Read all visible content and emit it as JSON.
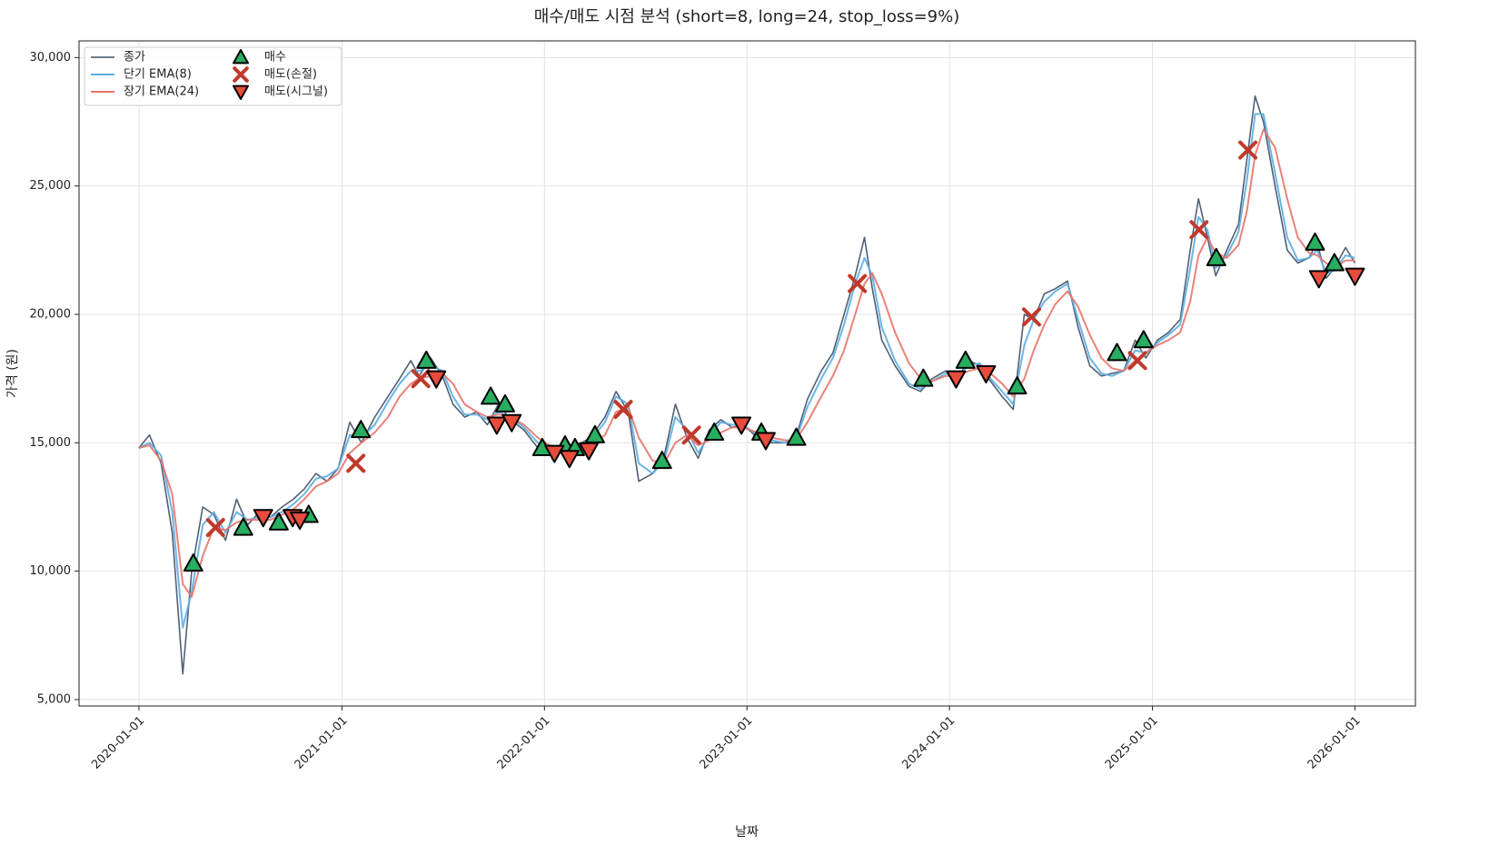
{
  "chart_data": {
    "type": "line",
    "title": "매수/매도 시점 분석 (short=8, long=24, stop_loss=9%)",
    "x_label": "날짜",
    "y_label": "가격 (원)",
    "xlim": [
      "2019-09-15",
      "2026-04-20"
    ],
    "xticks": [
      "2020-01-01",
      "2021-01-01",
      "2022-01-01",
      "2023-01-01",
      "2024-01-01",
      "2025-01-01",
      "2026-01-01"
    ],
    "ylim": [
      4750,
      30650
    ],
    "yticks": [
      {
        "value": 5000,
        "label": "5,000"
      },
      {
        "value": 10000,
        "label": "10,000"
      },
      {
        "value": 15000,
        "label": "15,000"
      },
      {
        "value": 20000,
        "label": "20,000"
      },
      {
        "value": 25000,
        "label": "25,000"
      },
      {
        "value": 30000,
        "label": "30,000"
      }
    ],
    "grid": true,
    "legend": "upper left",
    "x": [
      "2020-01-01",
      "2020-01-20",
      "2020-02-10",
      "2020-03-01",
      "2020-03-20",
      "2020-04-05",
      "2020-04-25",
      "2020-05-15",
      "2020-06-05",
      "2020-06-25",
      "2020-07-15",
      "2020-08-05",
      "2020-08-25",
      "2020-09-15",
      "2020-10-05",
      "2020-10-25",
      "2020-11-15",
      "2020-12-05",
      "2020-12-25",
      "2021-01-15",
      "2021-02-05",
      "2021-03-01",
      "2021-03-25",
      "2021-04-15",
      "2021-05-05",
      "2021-05-20",
      "2021-06-10",
      "2021-07-01",
      "2021-07-20",
      "2021-08-10",
      "2021-09-01",
      "2021-09-20",
      "2021-10-10",
      "2021-11-01",
      "2021-11-25",
      "2021-12-20",
      "2022-01-10",
      "2022-02-01",
      "2022-03-01",
      "2022-03-25",
      "2022-04-20",
      "2022-05-10",
      "2022-06-01",
      "2022-06-20",
      "2022-07-15",
      "2022-08-05",
      "2022-08-25",
      "2022-09-15",
      "2022-10-05",
      "2022-10-25",
      "2022-11-15",
      "2022-12-05",
      "2022-12-25",
      "2023-01-20",
      "2023-02-15",
      "2023-03-10",
      "2023-03-30",
      "2023-04-20",
      "2023-05-15",
      "2023-06-05",
      "2023-06-25",
      "2023-07-15",
      "2023-08-01",
      "2023-08-15",
      "2023-09-01",
      "2023-09-25",
      "2023-10-20",
      "2023-11-10",
      "2023-12-01",
      "2023-12-25",
      "2024-01-15",
      "2024-02-05",
      "2024-02-25",
      "2024-03-15",
      "2024-04-05",
      "2024-04-25",
      "2024-05-15",
      "2024-06-01",
      "2024-06-20",
      "2024-07-10",
      "2024-08-01",
      "2024-08-20",
      "2024-09-10",
      "2024-10-01",
      "2024-10-20",
      "2024-11-10",
      "2024-12-01",
      "2024-12-20",
      "2025-01-10",
      "2025-01-30",
      "2025-02-20",
      "2025-03-10",
      "2025-03-25",
      "2025-04-10",
      "2025-04-25",
      "2025-05-15",
      "2025-06-05",
      "2025-06-20",
      "2025-07-05",
      "2025-07-20",
      "2025-08-10",
      "2025-09-01",
      "2025-09-20",
      "2025-10-10",
      "2025-10-25",
      "2025-11-10",
      "2025-11-25",
      "2025-12-15",
      "2026-01-01"
    ],
    "series": [
      {
        "name": "종가",
        "color": "#3d4f66",
        "width": 1.6,
        "values": [
          14800,
          15300,
          14200,
          11500,
          6000,
          10000,
          12500,
          12200,
          11200,
          12800,
          11800,
          12300,
          12100,
          12500,
          12800,
          13200,
          13800,
          13500,
          14000,
          15800,
          15000,
          16000,
          16800,
          17500,
          18200,
          17600,
          18300,
          17600,
          16500,
          16000,
          16200,
          15700,
          16500,
          15900,
          15500,
          14800,
          14600,
          14800,
          14900,
          15200,
          16000,
          17000,
          16200,
          13500,
          13800,
          14500,
          16500,
          15200,
          14400,
          15500,
          15900,
          15600,
          15700,
          15200,
          15000,
          15000,
          15200,
          16700,
          17800,
          18500,
          20000,
          21500,
          23000,
          21000,
          19000,
          18000,
          17200,
          17000,
          17500,
          17800,
          17500,
          18200,
          18000,
          17400,
          16800,
          16300,
          20000,
          19800,
          20800,
          21000,
          21300,
          19500,
          18000,
          17600,
          17700,
          17800,
          19000,
          18300,
          19000,
          19300,
          19800,
          22500,
          24500,
          23000,
          21500,
          22500,
          23500,
          26000,
          28500,
          27500,
          25000,
          22500,
          22000,
          22200,
          22800,
          21400,
          21800,
          22600,
          22000
        ]
      },
      {
        "name": "단기 EMA(8)",
        "color": "#5dade2",
        "width": 2,
        "values": [
          14800,
          15000,
          14500,
          12300,
          7800,
          9200,
          11800,
          12300,
          11500,
          12300,
          12000,
          12100,
          12100,
          12300,
          12600,
          13000,
          13600,
          13700,
          14000,
          15300,
          15200,
          15700,
          16600,
          17300,
          17800,
          17800,
          18000,
          17800,
          16800,
          16100,
          16100,
          15900,
          16200,
          16000,
          15600,
          15000,
          14700,
          14800,
          14800,
          15100,
          15800,
          16800,
          16500,
          14200,
          13800,
          14300,
          16000,
          15500,
          14600,
          15300,
          15800,
          15700,
          15700,
          15300,
          15100,
          15000,
          15100,
          16400,
          17500,
          18300,
          19600,
          21200,
          22200,
          21500,
          19500,
          18200,
          17300,
          17100,
          17400,
          17700,
          17600,
          18000,
          18100,
          17500,
          17000,
          16500,
          18800,
          19800,
          20500,
          20900,
          21200,
          19800,
          18300,
          17700,
          17600,
          17800,
          18600,
          18500,
          18900,
          19200,
          19600,
          21800,
          23800,
          23300,
          21800,
          22300,
          23200,
          25200,
          27800,
          27800,
          25500,
          23000,
          22100,
          22200,
          22500,
          21600,
          21700,
          22300,
          22200
        ]
      },
      {
        "name": "장기 EMA(24)",
        "color": "#e8746a",
        "width": 2,
        "values": [
          14800,
          14900,
          14300,
          13000,
          9500,
          9000,
          10600,
          11700,
          11600,
          11900,
          12000,
          12000,
          12000,
          12200,
          12400,
          12800,
          13300,
          13500,
          13800,
          14600,
          15000,
          15400,
          16000,
          16800,
          17300,
          17500,
          17600,
          17700,
          17300,
          16500,
          16200,
          16000,
          16100,
          16000,
          15700,
          15200,
          14900,
          14800,
          14800,
          14900,
          15300,
          16200,
          16400,
          15200,
          14300,
          14200,
          15000,
          15300,
          14900,
          15100,
          15400,
          15600,
          15600,
          15400,
          15200,
          15100,
          15100,
          15800,
          16800,
          17600,
          18600,
          20000,
          21200,
          21600,
          20800,
          19300,
          18100,
          17500,
          17400,
          17600,
          17600,
          17800,
          17900,
          17700,
          17300,
          16800,
          17500,
          18600,
          19600,
          20400,
          20900,
          20300,
          19200,
          18300,
          17900,
          17800,
          18200,
          18500,
          18800,
          19000,
          19300,
          20500,
          22300,
          23000,
          22400,
          22200,
          22700,
          24000,
          26200,
          27200,
          26500,
          24500,
          23000,
          22400,
          22300,
          22000,
          21800,
          22100,
          22100
        ]
      }
    ],
    "markers": [
      {
        "name": "매수",
        "shape": "triangle-up",
        "color": "#27ae60",
        "x": [
          "2020-04-08",
          "2020-07-07",
          "2020-09-09",
          "2020-11-02",
          "2021-02-04",
          "2021-06-02",
          "2021-09-26",
          "2021-10-22",
          "2021-12-28",
          "2022-02-07",
          "2022-02-25",
          "2022-04-02",
          "2022-08-01",
          "2022-11-03",
          "2023-01-27",
          "2023-03-31",
          "2023-11-15",
          "2024-01-30",
          "2024-05-02",
          "2024-10-29",
          "2024-12-16",
          "2025-04-26",
          "2025-10-21",
          "2025-11-25"
        ],
        "values": [
          10300,
          11700,
          11900,
          12200,
          15500,
          18200,
          16800,
          16500,
          14800,
          14900,
          14800,
          15300,
          14300,
          15400,
          15400,
          15200,
          17500,
          18200,
          17200,
          18500,
          19000,
          22200,
          22800,
          22000
        ]
      },
      {
        "name": "매도(손절)",
        "shape": "x",
        "color": "#c0392b",
        "x": [
          "2020-05-18",
          "2021-01-26",
          "2021-05-23",
          "2022-05-23",
          "2022-09-23",
          "2023-07-19",
          "2024-05-28",
          "2024-12-05",
          "2025-03-26",
          "2025-06-22"
        ],
        "values": [
          11700,
          14200,
          17500,
          16300,
          15300,
          21200,
          19900,
          18200,
          23300,
          26400
        ]
      },
      {
        "name": "매도(시그널)",
        "shape": "triangle-down",
        "color": "#e74c3c",
        "x": [
          "2020-08-12",
          "2020-10-04",
          "2020-10-17",
          "2021-06-20",
          "2021-10-07",
          "2021-11-03",
          "2022-01-19",
          "2022-02-15",
          "2022-03-22",
          "2022-12-22",
          "2023-02-04",
          "2024-01-13",
          "2024-03-07",
          "2025-10-28",
          "2026-01-01"
        ],
        "values": [
          12100,
          12100,
          12000,
          17500,
          15700,
          15800,
          14600,
          14400,
          14700,
          15700,
          15100,
          17500,
          17700,
          21400,
          21500
        ]
      }
    ]
  }
}
